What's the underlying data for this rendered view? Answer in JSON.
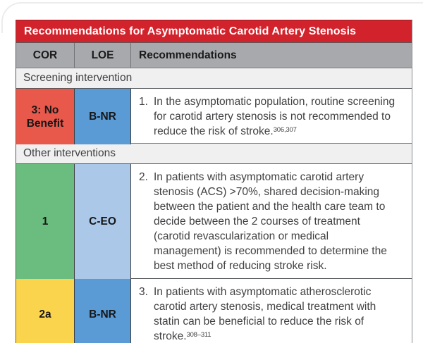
{
  "page": {
    "background": "#ffffff",
    "corner_line_color": "#ececec"
  },
  "table": {
    "title": "Recommendations for Asymptomatic Carotid Artery Stenosis",
    "title_bg": "#d2222b",
    "title_color": "#ffffff",
    "header": {
      "cor": "COR",
      "loe": "LOE",
      "rec": "Recommendations",
      "bg": "#a7a9ac"
    },
    "sections": [
      {
        "label": "Screening intervention"
      },
      {
        "label": "Other interventions"
      }
    ],
    "section_bg": "#f0f0f1",
    "border_color": "#57585a",
    "rows": [
      {
        "cor": "3: No Benefit",
        "cor_bg": "#e8594b",
        "loe": "B-NR",
        "loe_bg": "#5b9bd5",
        "num": "1.",
        "text": "In the asymptomatic population, routine screening for carotid artery stenosis is not recommended to reduce the risk of stroke.",
        "ref": "306,307"
      },
      {
        "cor": "1",
        "cor_bg": "#6bbd7f",
        "loe": "C-EO",
        "loe_bg": "#abc8e9",
        "num": "2.",
        "text": "In patients with asymptomatic carotid artery stenosis (ACS) >70%, shared decision-making between the patient and the health care team to decide between the 2 courses of treatment (carotid revascularization or medical management) is recommended to determine the best method of reducing stroke risk.",
        "ref": ""
      },
      {
        "cor": "2a",
        "cor_bg": "#fbd44e",
        "loe": "B-NR",
        "loe_bg": "#5b9bd5",
        "num": "3.",
        "text": "In patients with asymptomatic atherosclerotic carotid artery stenosis, medical treatment with statin can be beneficial to reduce the risk of stroke.",
        "ref": "308–311"
      }
    ]
  }
}
